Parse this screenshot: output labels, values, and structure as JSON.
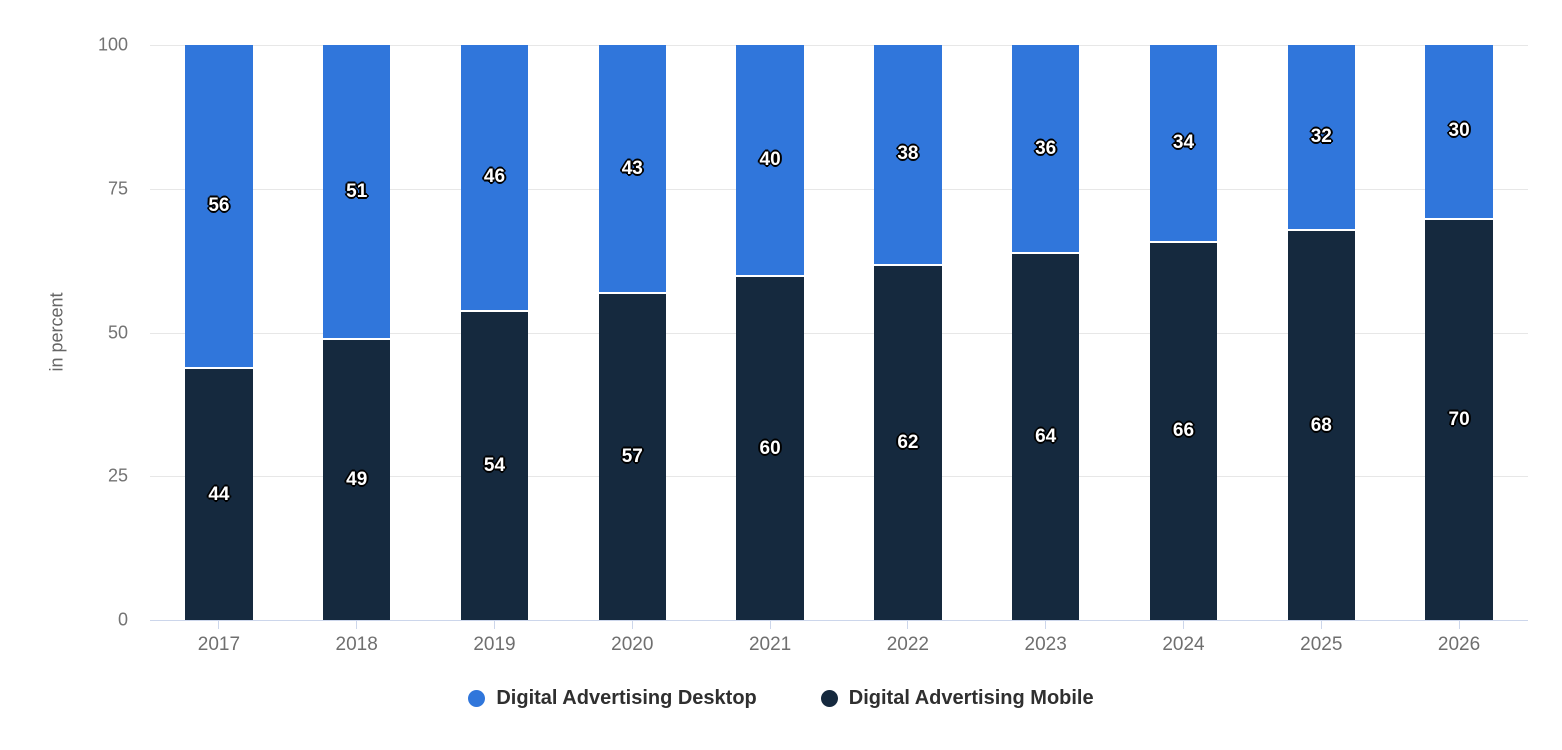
{
  "chart_data": {
    "type": "bar",
    "stacked": true,
    "title": "",
    "ylabel": "in percent",
    "ylim": [
      0,
      100
    ],
    "yticks": [
      0,
      25,
      50,
      75,
      100
    ],
    "grid": true,
    "legend_position": "bottom",
    "categories": [
      "2017",
      "2018",
      "2019",
      "2020",
      "2021",
      "2022",
      "2023",
      "2024",
      "2025",
      "2026"
    ],
    "series": [
      {
        "name": "Digital Advertising Desktop",
        "color": "#3076db",
        "values": [
          56,
          51,
          46,
          43,
          40,
          38,
          36,
          34,
          32,
          30
        ]
      },
      {
        "name": "Digital Advertising Mobile",
        "color": "#15293e",
        "values": [
          44,
          49,
          54,
          57,
          60,
          62,
          64,
          66,
          68,
          70
        ]
      }
    ]
  },
  "style": {
    "background": "#ffffff",
    "gridline_color": "#e7e7e7",
    "axis_line_color": "#ccd6eb",
    "tick_label_color": "#737373",
    "axis_title_color": "#666666",
    "legend_text_color": "#2f2f2f",
    "data_label_color": "#ffffff",
    "data_label_outline": "#000000"
  }
}
